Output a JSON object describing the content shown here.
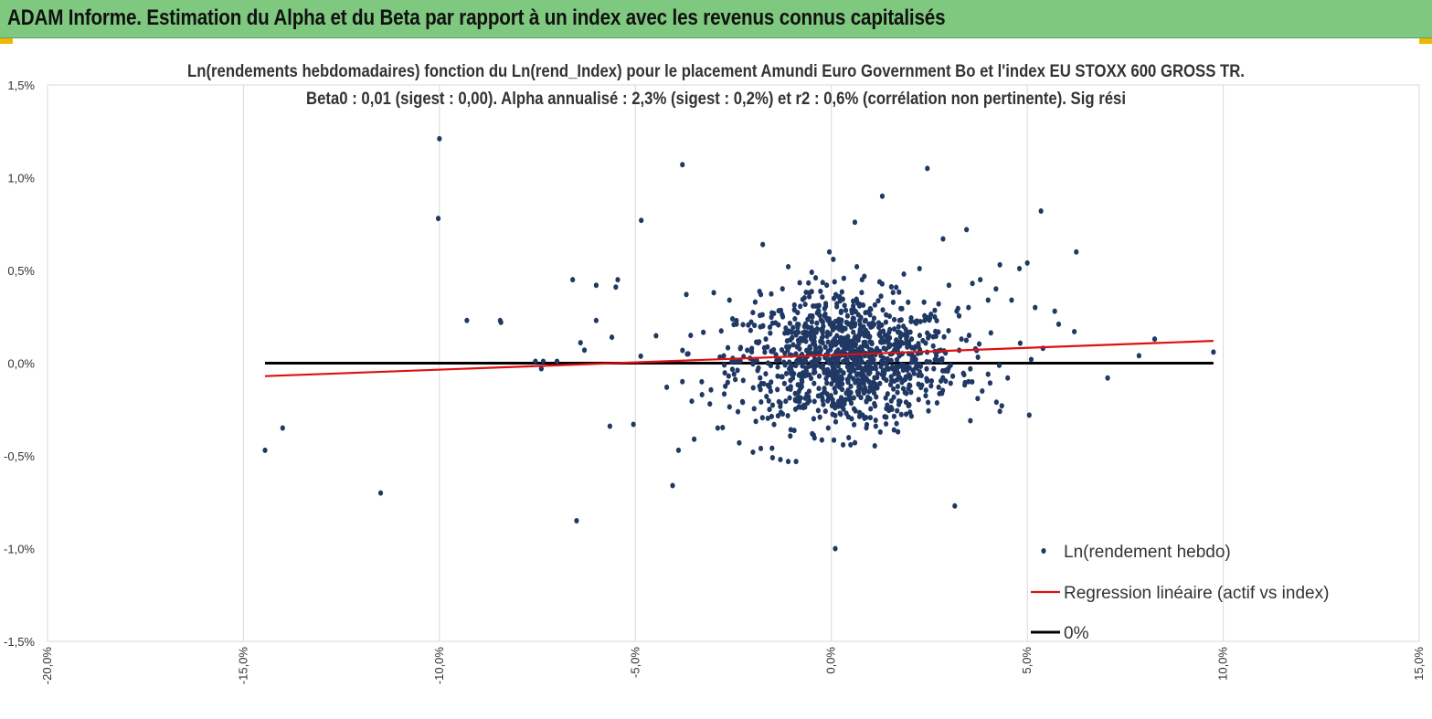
{
  "header": {
    "title": "ADAM Informe. Estimation du Alpha et du Beta par rapport à un index avec les revenus connus capitalisés"
  },
  "colors": {
    "header_bg": "#7fc87f",
    "points": "#203864",
    "regression": "#e01010",
    "zero_line": "#000000",
    "grid": "#d9d9d9"
  },
  "chart_data": {
    "type": "scatter",
    "title": "Ln(rendements hebdomadaires) fonction du Ln(rend_Index) pour le placement Amundi Euro Government Bo et l'index EU STOXX  600 GROSS TR.",
    "subtitle": "Beta0 : 0,01 (sigest : 0,00). Alpha annualisé : 2,3% (sigest : 0,2%) et r2 : 0,6% (corrélation non pertinente). Sig rési",
    "xlabel": "",
    "ylabel": "",
    "xlim": [
      -0.2,
      0.15
    ],
    "ylim": [
      -0.015,
      0.015
    ],
    "x_ticks": [
      -0.2,
      -0.15,
      -0.1,
      -0.05,
      0.0,
      0.05,
      0.1,
      0.15
    ],
    "x_tick_labels": [
      "-20,0%",
      "-15,0%",
      "-10,0%",
      "-5,0%",
      "0,0%",
      "5,0%",
      "10,0%",
      "15,0%"
    ],
    "y_ticks": [
      0.015,
      0.01,
      0.005,
      0.0,
      -0.005,
      -0.01,
      -0.015
    ],
    "y_tick_labels": [
      "1,5%",
      "1,0%",
      "0,5%",
      "0,0%",
      "-0,5%",
      "-1,0%",
      "-1,5%"
    ],
    "legend": [
      {
        "name": "Ln(rendement hebdo)",
        "kind": "marker"
      },
      {
        "name": "Regression linéaire (actif vs index)",
        "kind": "line"
      },
      {
        "name": "0%",
        "kind": "line"
      }
    ],
    "legend_position": "bottom-right",
    "series": [
      {
        "name": "Ln(rendement hebdo)",
        "type": "scatter",
        "points": [
          [
            -0.1,
            0.0121
          ],
          [
            -0.1003,
            0.0078
          ],
          [
            -0.038,
            0.0107
          ],
          [
            0.0245,
            0.0105
          ],
          [
            -0.0485,
            0.0077
          ],
          [
            0.013,
            0.009
          ],
          [
            0.0535,
            0.0082
          ],
          [
            0.0345,
            0.0072
          ],
          [
            0.006,
            0.0076
          ],
          [
            0.0285,
            0.0067
          ],
          [
            -0.0175,
            0.0064
          ],
          [
            0.0625,
            0.006
          ],
          [
            -0.005,
            0.0049
          ],
          [
            0.05,
            0.0054
          ],
          [
            0.043,
            0.0053
          ],
          [
            0.048,
            0.0051
          ],
          [
            -0.066,
            0.0045
          ],
          [
            -0.0545,
            0.0045
          ],
          [
            -0.06,
            0.0042
          ],
          [
            -0.055,
            0.0041
          ],
          [
            -0.093,
            0.0023
          ],
          [
            -0.0845,
            0.0023
          ],
          [
            -0.0843,
            0.0022
          ],
          [
            0.057,
            0.0028
          ],
          [
            0.058,
            0.0021
          ],
          [
            0.062,
            0.0017
          ],
          [
            0.0055,
            0.0024
          ],
          [
            0.052,
            0.003
          ],
          [
            -0.0755,
            0.0001
          ],
          [
            -0.0735,
            0.0001
          ],
          [
            -0.074,
            -0.0003
          ],
          [
            -0.07,
            0.0001
          ],
          [
            -0.06,
            0.0023
          ],
          [
            -0.064,
            0.0011
          ],
          [
            -0.063,
            0.0007
          ],
          [
            -0.056,
            0.0014
          ],
          [
            -0.1445,
            -0.0047
          ],
          [
            -0.14,
            -0.0035
          ],
          [
            -0.115,
            -0.007
          ],
          [
            -0.065,
            -0.0085
          ],
          [
            -0.0405,
            -0.0066
          ],
          [
            0.001,
            -0.01
          ],
          [
            0.003,
            -0.0044
          ],
          [
            0.0315,
            -0.0077
          ],
          [
            -0.039,
            -0.0047
          ],
          [
            -0.0565,
            -0.0034
          ],
          [
            -0.0505,
            -0.0033
          ],
          [
            0.0505,
            -0.0028
          ],
          [
            0.043,
            -0.0026
          ],
          [
            0.0435,
            -0.0023
          ],
          [
            0.0705,
            -0.0008
          ],
          [
            0.0785,
            0.0004
          ],
          [
            0.0825,
            0.0013
          ],
          [
            0.0975,
            0.0006
          ],
          [
            0.051,
            0.0002
          ],
          [
            0.054,
            0.0008
          ],
          [
            -0.0005,
            0.006
          ],
          [
            0.0005,
            0.0056
          ],
          [
            -0.011,
            0.0052
          ],
          [
            -0.004,
            0.0046
          ],
          [
            0.0065,
            0.0052
          ],
          [
            0.0185,
            0.0048
          ],
          [
            0.0225,
            0.0051
          ],
          [
            -0.013,
            -0.0052
          ],
          [
            -0.011,
            -0.0053
          ],
          [
            -0.009,
            -0.0053
          ],
          [
            -0.015,
            -0.0051
          ],
          [
            -0.02,
            -0.0048
          ],
          [
            -0.018,
            -0.0046
          ],
          [
            -0.0235,
            -0.0043
          ],
          [
            -0.035,
            -0.0041
          ],
          [
            -0.029,
            -0.0035
          ],
          [
            0.016,
            -0.0036
          ],
          [
            0.017,
            -0.0037
          ],
          [
            0.008,
            -0.0028
          ],
          [
            -0.0045,
            -0.003
          ],
          [
            -0.03,
            0.0038
          ],
          [
            -0.037,
            0.0037
          ],
          [
            -0.026,
            0.0034
          ],
          [
            -0.018,
            0.0037
          ],
          [
            0.038,
            0.0045
          ],
          [
            0.036,
            0.0043
          ],
          [
            0.03,
            0.0042
          ],
          [
            0.042,
            0.004
          ],
          [
            0.04,
            0.0034
          ],
          [
            0.035,
            0.003
          ],
          [
            0.046,
            0.0034
          ],
          [
            0.032,
            0.0028
          ],
          [
            0.0385,
            -0.0015
          ],
          [
            0.035,
            -0.001
          ],
          [
            0.045,
            -0.0008
          ],
          [
            0.04,
            -0.0006
          ],
          [
            -0.042,
            -0.0013
          ],
          [
            -0.038,
            -0.001
          ],
          [
            -0.033,
            -0.0017
          ],
          [
            -0.031,
            -0.0022
          ]
        ]
      },
      {
        "name": "Regression linéaire (actif vs index)",
        "type": "line",
        "x": [
          -0.1445,
          0.0975
        ],
        "y": [
          -0.0007,
          0.0012
        ]
      },
      {
        "name": "0%",
        "type": "line",
        "x": [
          -0.1445,
          0.0975
        ],
        "y": [
          0.0,
          0.0
        ]
      }
    ],
    "cluster_note": "additional dense cloud of weekly returns concentrated around x≈0%, y≈0%"
  }
}
